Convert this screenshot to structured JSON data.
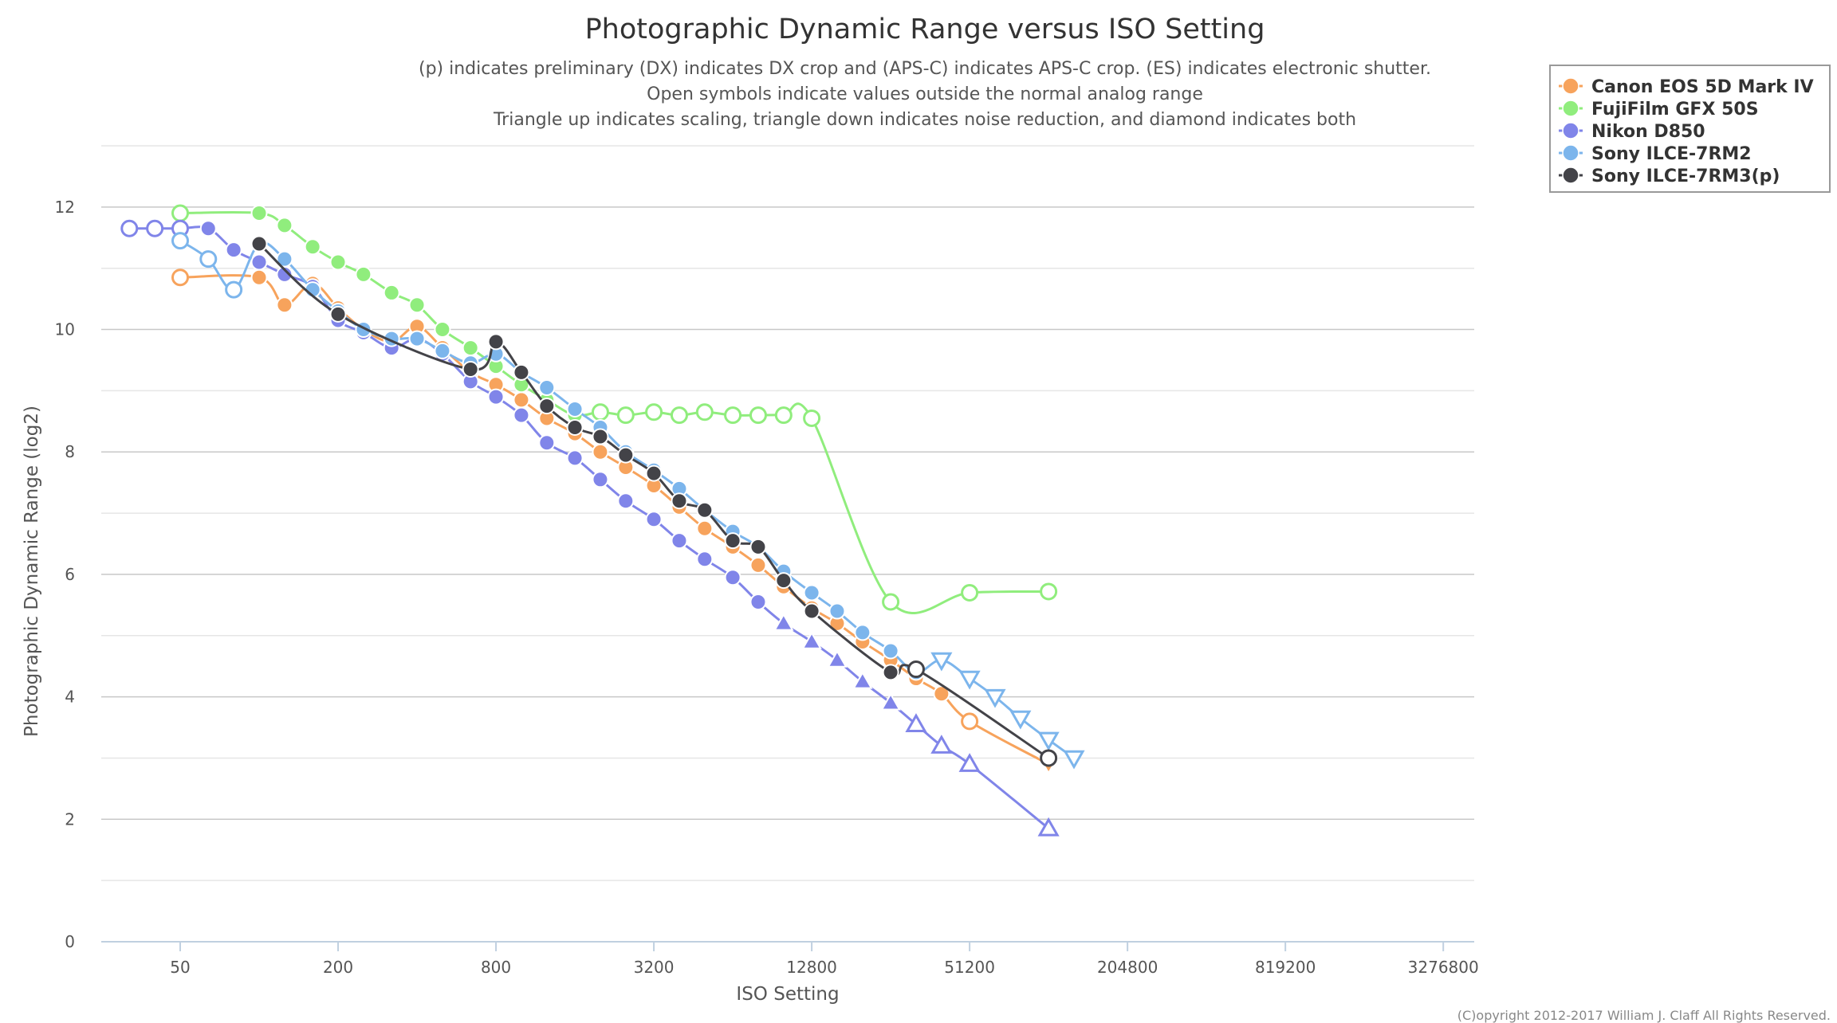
{
  "chart_data": {
    "type": "line",
    "title": "Photographic Dynamic Range versus ISO Setting",
    "subtitle_lines": [
      "(p) indicates preliminary (DX) indicates DX crop and (APS-C) indicates APS-C crop. (ES) indicates electronic shutter.",
      "Open symbols indicate values outside the normal analog range",
      "Triangle up indicates scaling, triangle down indicates noise reduction, and diamond indicates both"
    ],
    "xlabel": "ISO Setting",
    "ylabel": "Photographic Dynamic Range (log2)",
    "x_scale": "log2",
    "x_ticks": [
      50,
      200,
      800,
      3200,
      12800,
      51200,
      204800,
      819200,
      3276800
    ],
    "x_tick_labels": [
      "50",
      "200",
      "800",
      "3200",
      "12800",
      "51200",
      "204800",
      "819200",
      "3276800"
    ],
    "xlim": [
      25,
      4300000
    ],
    "ylim": [
      0,
      13
    ],
    "y_ticks": [
      0,
      2,
      4,
      6,
      8,
      10,
      12
    ],
    "y_tick_labels": [
      "0",
      "2",
      "4",
      "6",
      "8",
      "10",
      "12"
    ],
    "grid": true,
    "legend_position": "top-right",
    "credit": "(C)opyright 2012-2017 William J. Claff All Rights Reserved.",
    "series": [
      {
        "name": "Canon EOS 5D Mark IV",
        "color": "#f7a35c",
        "points": [
          {
            "x": 50,
            "y": 10.85,
            "m": "open"
          },
          {
            "x": 100,
            "y": 10.85
          },
          {
            "x": 125,
            "y": 10.4
          },
          {
            "x": 160,
            "y": 10.75
          },
          {
            "x": 200,
            "y": 10.35
          },
          {
            "x": 250,
            "y": 10.0
          },
          {
            "x": 320,
            "y": 9.8
          },
          {
            "x": 400,
            "y": 10.05
          },
          {
            "x": 500,
            "y": 9.7
          },
          {
            "x": 640,
            "y": 9.3
          },
          {
            "x": 800,
            "y": 9.1
          },
          {
            "x": 1000,
            "y": 8.85
          },
          {
            "x": 1250,
            "y": 8.55
          },
          {
            "x": 1600,
            "y": 8.3
          },
          {
            "x": 2000,
            "y": 8.0
          },
          {
            "x": 2500,
            "y": 7.75
          },
          {
            "x": 3200,
            "y": 7.45
          },
          {
            "x": 4000,
            "y": 7.1
          },
          {
            "x": 5000,
            "y": 6.75
          },
          {
            "x": 6400,
            "y": 6.45
          },
          {
            "x": 8000,
            "y": 6.15
          },
          {
            "x": 10000,
            "y": 5.8
          },
          {
            "x": 12800,
            "y": 5.45
          },
          {
            "x": 16000,
            "y": 5.2
          },
          {
            "x": 20000,
            "y": 4.9
          },
          {
            "x": 25600,
            "y": 4.6
          },
          {
            "x": 32000,
            "y": 4.3
          },
          {
            "x": 40000,
            "y": 4.05
          },
          {
            "x": 51200,
            "y": 3.6,
            "m": "open"
          },
          {
            "x": 102400,
            "y": 2.9,
            "m": "tridown"
          }
        ]
      },
      {
        "name": "FujiFilm GFX 50S",
        "color": "#90ed7d",
        "points": [
          {
            "x": 50,
            "y": 11.9,
            "m": "open"
          },
          {
            "x": 100,
            "y": 11.9
          },
          {
            "x": 125,
            "y": 11.7
          },
          {
            "x": 160,
            "y": 11.35
          },
          {
            "x": 200,
            "y": 11.1
          },
          {
            "x": 250,
            "y": 10.9
          },
          {
            "x": 320,
            "y": 10.6
          },
          {
            "x": 400,
            "y": 10.4
          },
          {
            "x": 500,
            "y": 10.0
          },
          {
            "x": 640,
            "y": 9.7
          },
          {
            "x": 800,
            "y": 9.4
          },
          {
            "x": 1000,
            "y": 9.1
          },
          {
            "x": 1250,
            "y": 8.85
          },
          {
            "x": 1600,
            "y": 8.6
          },
          {
            "x": 2000,
            "y": 8.65,
            "m": "open"
          },
          {
            "x": 2500,
            "y": 8.6,
            "m": "open"
          },
          {
            "x": 3200,
            "y": 8.65,
            "m": "open"
          },
          {
            "x": 4000,
            "y": 8.6,
            "m": "open"
          },
          {
            "x": 5000,
            "y": 8.65,
            "m": "open"
          },
          {
            "x": 6400,
            "y": 8.6,
            "m": "open"
          },
          {
            "x": 8000,
            "y": 8.6,
            "m": "open"
          },
          {
            "x": 10000,
            "y": 8.6,
            "m": "open"
          },
          {
            "x": 12800,
            "y": 8.55,
            "m": "open"
          },
          {
            "x": 25600,
            "y": 5.55,
            "m": "open"
          },
          {
            "x": 51200,
            "y": 5.7,
            "m": "open"
          },
          {
            "x": 102400,
            "y": 5.72,
            "m": "open"
          }
        ]
      },
      {
        "name": "Nikon D850",
        "color": "#8085e9",
        "points": [
          {
            "x": 32,
            "y": 11.65,
            "m": "open"
          },
          {
            "x": 40,
            "y": 11.65,
            "m": "open"
          },
          {
            "x": 50,
            "y": 11.65,
            "m": "open"
          },
          {
            "x": 64,
            "y": 11.65
          },
          {
            "x": 80,
            "y": 11.3
          },
          {
            "x": 100,
            "y": 11.1
          },
          {
            "x": 125,
            "y": 10.9
          },
          {
            "x": 160,
            "y": 10.7
          },
          {
            "x": 200,
            "y": 10.15
          },
          {
            "x": 250,
            "y": 9.95
          },
          {
            "x": 320,
            "y": 9.7
          },
          {
            "x": 400,
            "y": 9.85
          },
          {
            "x": 500,
            "y": 9.6
          },
          {
            "x": 640,
            "y": 9.15
          },
          {
            "x": 800,
            "y": 8.9
          },
          {
            "x": 1000,
            "y": 8.6
          },
          {
            "x": 1250,
            "y": 8.15
          },
          {
            "x": 1600,
            "y": 7.9
          },
          {
            "x": 2000,
            "y": 7.55
          },
          {
            "x": 2500,
            "y": 7.2
          },
          {
            "x": 3200,
            "y": 6.9
          },
          {
            "x": 4000,
            "y": 6.55
          },
          {
            "x": 5000,
            "y": 6.25
          },
          {
            "x": 6400,
            "y": 5.95
          },
          {
            "x": 8000,
            "y": 5.55
          },
          {
            "x": 10000,
            "y": 5.2,
            "m": "triup"
          },
          {
            "x": 12800,
            "y": 4.9,
            "m": "triup"
          },
          {
            "x": 16000,
            "y": 4.6,
            "m": "triup"
          },
          {
            "x": 20000,
            "y": 4.25,
            "m": "triup"
          },
          {
            "x": 25600,
            "y": 3.9,
            "m": "triup"
          },
          {
            "x": 32000,
            "y": 3.55,
            "m": "triup-open"
          },
          {
            "x": 40000,
            "y": 3.2,
            "m": "triup-open"
          },
          {
            "x": 51200,
            "y": 2.9,
            "m": "triup-open"
          },
          {
            "x": 102400,
            "y": 1.85,
            "m": "triup-open"
          }
        ]
      },
      {
        "name": "Sony ILCE-7RM2",
        "color": "#7cb5ec",
        "points": [
          {
            "x": 50,
            "y": 11.45,
            "m": "open"
          },
          {
            "x": 64,
            "y": 11.15,
            "m": "open"
          },
          {
            "x": 80,
            "y": 10.65,
            "m": "open"
          },
          {
            "x": 100,
            "y": 11.4
          },
          {
            "x": 125,
            "y": 11.15
          },
          {
            "x": 160,
            "y": 10.65
          },
          {
            "x": 200,
            "y": 10.3
          },
          {
            "x": 250,
            "y": 10.0
          },
          {
            "x": 320,
            "y": 9.85
          },
          {
            "x": 400,
            "y": 9.85
          },
          {
            "x": 500,
            "y": 9.65
          },
          {
            "x": 640,
            "y": 9.45
          },
          {
            "x": 800,
            "y": 9.6
          },
          {
            "x": 1000,
            "y": 9.3
          },
          {
            "x": 1250,
            "y": 9.05
          },
          {
            "x": 1600,
            "y": 8.7
          },
          {
            "x": 2000,
            "y": 8.4
          },
          {
            "x": 2500,
            "y": 8.0
          },
          {
            "x": 3200,
            "y": 7.7
          },
          {
            "x": 4000,
            "y": 7.4
          },
          {
            "x": 5000,
            "y": 7.05
          },
          {
            "x": 6400,
            "y": 6.7
          },
          {
            "x": 8000,
            "y": 6.45
          },
          {
            "x": 10000,
            "y": 6.05
          },
          {
            "x": 12800,
            "y": 5.7
          },
          {
            "x": 16000,
            "y": 5.4
          },
          {
            "x": 20000,
            "y": 5.05
          },
          {
            "x": 25600,
            "y": 4.75
          },
          {
            "x": 32000,
            "y": 4.4
          },
          {
            "x": 40000,
            "y": 4.6,
            "m": "tridown-open"
          },
          {
            "x": 51200,
            "y": 4.3,
            "m": "tridown-open"
          },
          {
            "x": 64000,
            "y": 4.0,
            "m": "tridown-open"
          },
          {
            "x": 80000,
            "y": 3.65,
            "m": "tridown-open"
          },
          {
            "x": 102400,
            "y": 3.3,
            "m": "tridown-open"
          },
          {
            "x": 128000,
            "y": 3.0,
            "m": "tridown-open"
          }
        ]
      },
      {
        "name": "Sony ILCE-7RM3(p)",
        "color": "#434348",
        "points": [
          {
            "x": 100,
            "y": 11.4
          },
          {
            "x": 200,
            "y": 10.25
          },
          {
            "x": 640,
            "y": 9.35
          },
          {
            "x": 800,
            "y": 9.8
          },
          {
            "x": 1000,
            "y": 9.3
          },
          {
            "x": 1250,
            "y": 8.75
          },
          {
            "x": 1600,
            "y": 8.4
          },
          {
            "x": 2000,
            "y": 8.25
          },
          {
            "x": 2500,
            "y": 7.95
          },
          {
            "x": 3200,
            "y": 7.65
          },
          {
            "x": 4000,
            "y": 7.2
          },
          {
            "x": 5000,
            "y": 7.05
          },
          {
            "x": 6400,
            "y": 6.55
          },
          {
            "x": 8000,
            "y": 6.45
          },
          {
            "x": 10000,
            "y": 5.9
          },
          {
            "x": 12800,
            "y": 5.4
          },
          {
            "x": 25600,
            "y": 4.4
          },
          {
            "x": 32000,
            "y": 4.45,
            "m": "open"
          },
          {
            "x": 102400,
            "y": 3.0,
            "m": "open"
          }
        ]
      }
    ]
  }
}
